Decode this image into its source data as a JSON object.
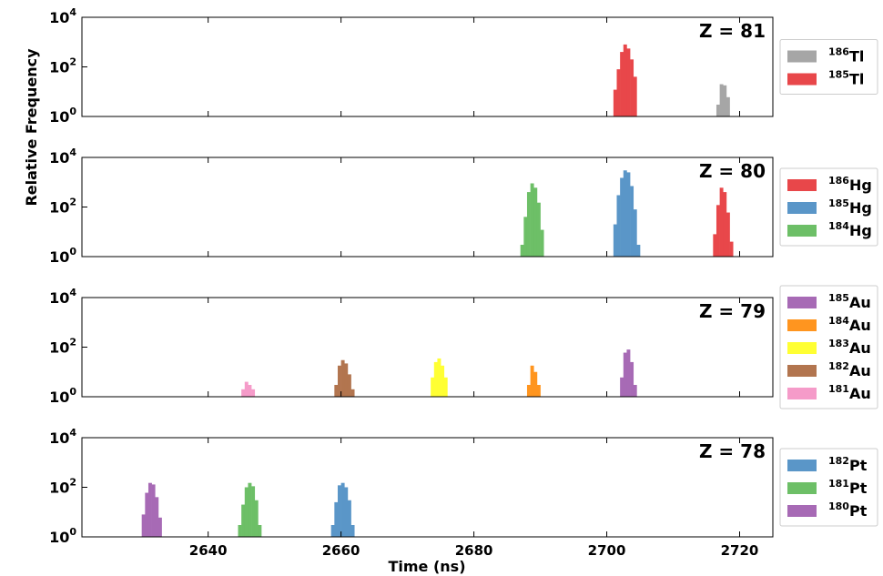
{
  "chart_data": {
    "type": "bar",
    "y_scale": "log",
    "ylabel": "Relative Frequency",
    "xlabel": "Time (ns)",
    "x_ticks": [
      "2640",
      "2660",
      "2680",
      "2700",
      "2720"
    ],
    "x_range": [
      2621,
      2725
    ],
    "y_range_exp": [
      0,
      4
    ],
    "y_ticks": [
      {
        "base": "10",
        "exp": "0",
        "value": 1
      },
      {
        "base": "10",
        "exp": "2",
        "value": 100
      },
      {
        "base": "10",
        "exp": "4",
        "value": 10000
      }
    ],
    "legend_placement": "right",
    "panels": [
      {
        "label": "Z = 81",
        "series": [
          {
            "name": "Tl",
            "mass": "186",
            "color": "#a6a6a6",
            "bins": [
              [
                2716.5,
                3
              ],
              [
                2717,
                20
              ],
              [
                2717.5,
                18
              ],
              [
                2718,
                6
              ]
            ]
          },
          {
            "name": "Tl",
            "mass": "185",
            "color": "#e8474a",
            "bins": [
              [
                2701,
                12
              ],
              [
                2701.5,
                80
              ],
              [
                2702,
                400
              ],
              [
                2702.5,
                800
              ],
              [
                2703,
                550
              ],
              [
                2703.5,
                200
              ],
              [
                2704,
                40
              ]
            ]
          }
        ]
      },
      {
        "label": "Z = 80",
        "series": [
          {
            "name": "Hg",
            "mass": "186",
            "color": "#e8474a",
            "bins": [
              [
                2716,
                8
              ],
              [
                2716.5,
                120
              ],
              [
                2717,
                600
              ],
              [
                2717.5,
                400
              ],
              [
                2718,
                60
              ],
              [
                2718.5,
                4
              ]
            ]
          },
          {
            "name": "Hg",
            "mass": "185",
            "color": "#5a96c8",
            "bins": [
              [
                2701,
                20
              ],
              [
                2701.5,
                300
              ],
              [
                2702,
                1500
              ],
              [
                2702.5,
                3000
              ],
              [
                2703,
                2500
              ],
              [
                2703.5,
                700
              ],
              [
                2704,
                80
              ],
              [
                2704.5,
                3
              ]
            ]
          },
          {
            "name": "Hg",
            "mass": "184",
            "color": "#6dbf67",
            "bins": [
              [
                2687,
                3
              ],
              [
                2687.5,
                40
              ],
              [
                2688,
                400
              ],
              [
                2688.5,
                900
              ],
              [
                2689,
                600
              ],
              [
                2689.5,
                150
              ],
              [
                2690,
                12
              ]
            ]
          }
        ]
      },
      {
        "label": "Z = 79",
        "series": [
          {
            "name": "Au",
            "mass": "185",
            "color": "#a76ab5",
            "bins": [
              [
                2702,
                6
              ],
              [
                2702.5,
                60
              ],
              [
                2703,
                80
              ],
              [
                2703.5,
                25
              ],
              [
                2704,
                3
              ]
            ]
          },
          {
            "name": "Au",
            "mass": "184",
            "color": "#ff951f",
            "bins": [
              [
                2688,
                3
              ],
              [
                2688.5,
                18
              ],
              [
                2689,
                10
              ],
              [
                2689.5,
                3
              ]
            ]
          },
          {
            "name": "Au",
            "mass": "183",
            "color": "#ffff33",
            "bins": [
              [
                2673.5,
                6
              ],
              [
                2674,
                25
              ],
              [
                2674.5,
                35
              ],
              [
                2675,
                18
              ],
              [
                2675.5,
                6
              ]
            ]
          },
          {
            "name": "Au",
            "mass": "182",
            "color": "#b2754f",
            "bins": [
              [
                2659,
                3
              ],
              [
                2659.5,
                18
              ],
              [
                2660,
                30
              ],
              [
                2660.5,
                22
              ],
              [
                2661,
                8
              ],
              [
                2661.5,
                2
              ]
            ]
          },
          {
            "name": "Au",
            "mass": "181",
            "color": "#f59bc9",
            "bins": [
              [
                2645,
                2
              ],
              [
                2645.5,
                4
              ],
              [
                2646,
                3
              ],
              [
                2646.5,
                2
              ]
            ]
          }
        ]
      },
      {
        "label": "Z = 78",
        "series": [
          {
            "name": "Pt",
            "mass": "182",
            "color": "#5a96c8",
            "bins": [
              [
                2658.5,
                3
              ],
              [
                2659,
                25
              ],
              [
                2659.5,
                120
              ],
              [
                2660,
                150
              ],
              [
                2660.5,
                100
              ],
              [
                2661,
                30
              ],
              [
                2661.5,
                3
              ]
            ]
          },
          {
            "name": "Pt",
            "mass": "181",
            "color": "#6dbf67",
            "bins": [
              [
                2644.5,
                3
              ],
              [
                2645,
                20
              ],
              [
                2645.5,
                100
              ],
              [
                2646,
                150
              ],
              [
                2646.5,
                110
              ],
              [
                2647,
                30
              ],
              [
                2647.5,
                3
              ]
            ]
          },
          {
            "name": "Pt",
            "mass": "180",
            "color": "#a76ab5",
            "bins": [
              [
                2630,
                8
              ],
              [
                2630.5,
                60
              ],
              [
                2631,
                150
              ],
              [
                2631.5,
                130
              ],
              [
                2632,
                40
              ],
              [
                2632.5,
                6
              ]
            ]
          }
        ]
      }
    ]
  }
}
